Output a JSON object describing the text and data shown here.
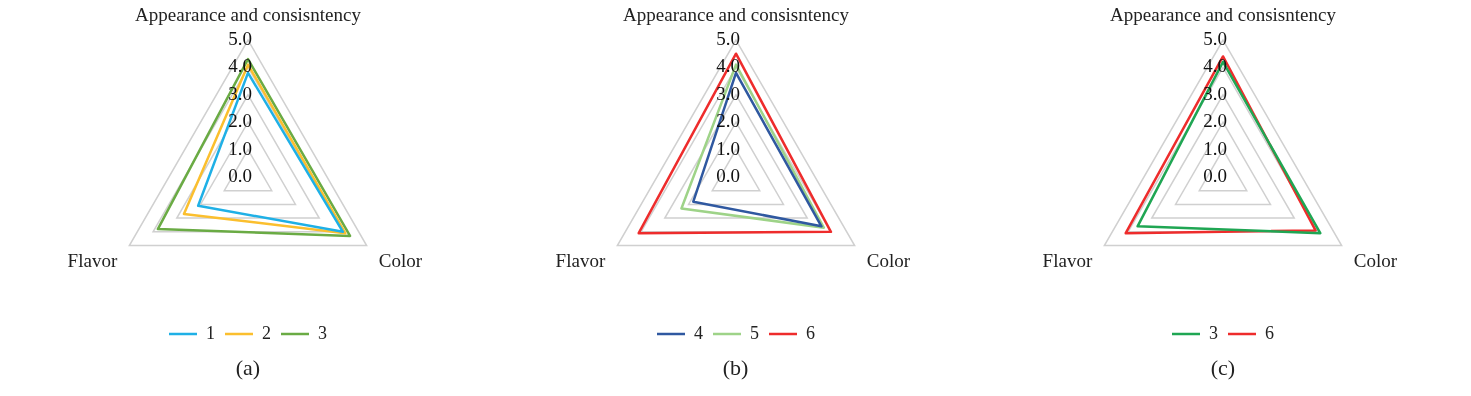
{
  "chart_data": [
    {
      "type": "radar",
      "title": "(a)",
      "categories": [
        "Appearance and consisntency",
        "Color",
        "Flavor"
      ],
      "ylim": [
        0,
        5
      ],
      "yticks": [
        {
          "value": 0,
          "label": "0.0"
        },
        {
          "value": 1,
          "label": "1.0"
        },
        {
          "value": 2,
          "label": "2.0"
        },
        {
          "value": 3,
          "label": "3.0"
        },
        {
          "value": 4,
          "label": "4.0"
        },
        {
          "value": 5,
          "label": "5.0"
        }
      ],
      "grid": true,
      "legend": "bottom",
      "marker": "none",
      "series": [
        {
          "name": "1",
          "color": "#1fb0e6",
          "values": [
            3.8,
            4.0,
            2.1
          ]
        },
        {
          "name": "2",
          "color": "#fbbf2e",
          "values": [
            4.1,
            4.1,
            2.7
          ]
        },
        {
          "name": "3",
          "color": "#6aab44",
          "values": [
            4.3,
            4.3,
            3.8
          ]
        }
      ]
    },
    {
      "type": "radar",
      "title": "(b)",
      "categories": [
        "Appearance and consisntency",
        "Color",
        "Flavor"
      ],
      "ylim": [
        0,
        5
      ],
      "yticks": [
        {
          "value": 0,
          "label": "0.0"
        },
        {
          "value": 1,
          "label": "1.0"
        },
        {
          "value": 2,
          "label": "2.0"
        },
        {
          "value": 3,
          "label": "3.0"
        },
        {
          "value": 4,
          "label": "4.0"
        },
        {
          "value": 5,
          "label": "5.0"
        }
      ],
      "grid": true,
      "legend": "bottom",
      "marker": "none",
      "series": [
        {
          "name": "4",
          "color": "#2f58a0",
          "values": [
            3.8,
            3.6,
            1.8
          ]
        },
        {
          "name": "5",
          "color": "#9ed388",
          "values": [
            4.1,
            3.7,
            2.3
          ]
        },
        {
          "name": "6",
          "color": "#ee2c2c",
          "values": [
            4.5,
            4.0,
            4.1
          ]
        }
      ]
    },
    {
      "type": "radar",
      "title": "(c)",
      "categories": [
        "Appearance and consisntency",
        "Color",
        "Flavor"
      ],
      "ylim": [
        0,
        5
      ],
      "yticks": [
        {
          "value": 0,
          "label": "0.0"
        },
        {
          "value": 1,
          "label": "1.0"
        },
        {
          "value": 2,
          "label": "2.0"
        },
        {
          "value": 3,
          "label": "3.0"
        },
        {
          "value": 4,
          "label": "4.0"
        },
        {
          "value": 5,
          "label": "5.0"
        }
      ],
      "grid": true,
      "legend": "bottom",
      "marker": "none",
      "series": [
        {
          "name": "3",
          "color": "#1fa653",
          "values": [
            4.2,
            4.1,
            3.6
          ]
        },
        {
          "name": "6",
          "color": "#ee2c2c",
          "values": [
            4.4,
            3.9,
            4.1
          ]
        }
      ]
    }
  ]
}
